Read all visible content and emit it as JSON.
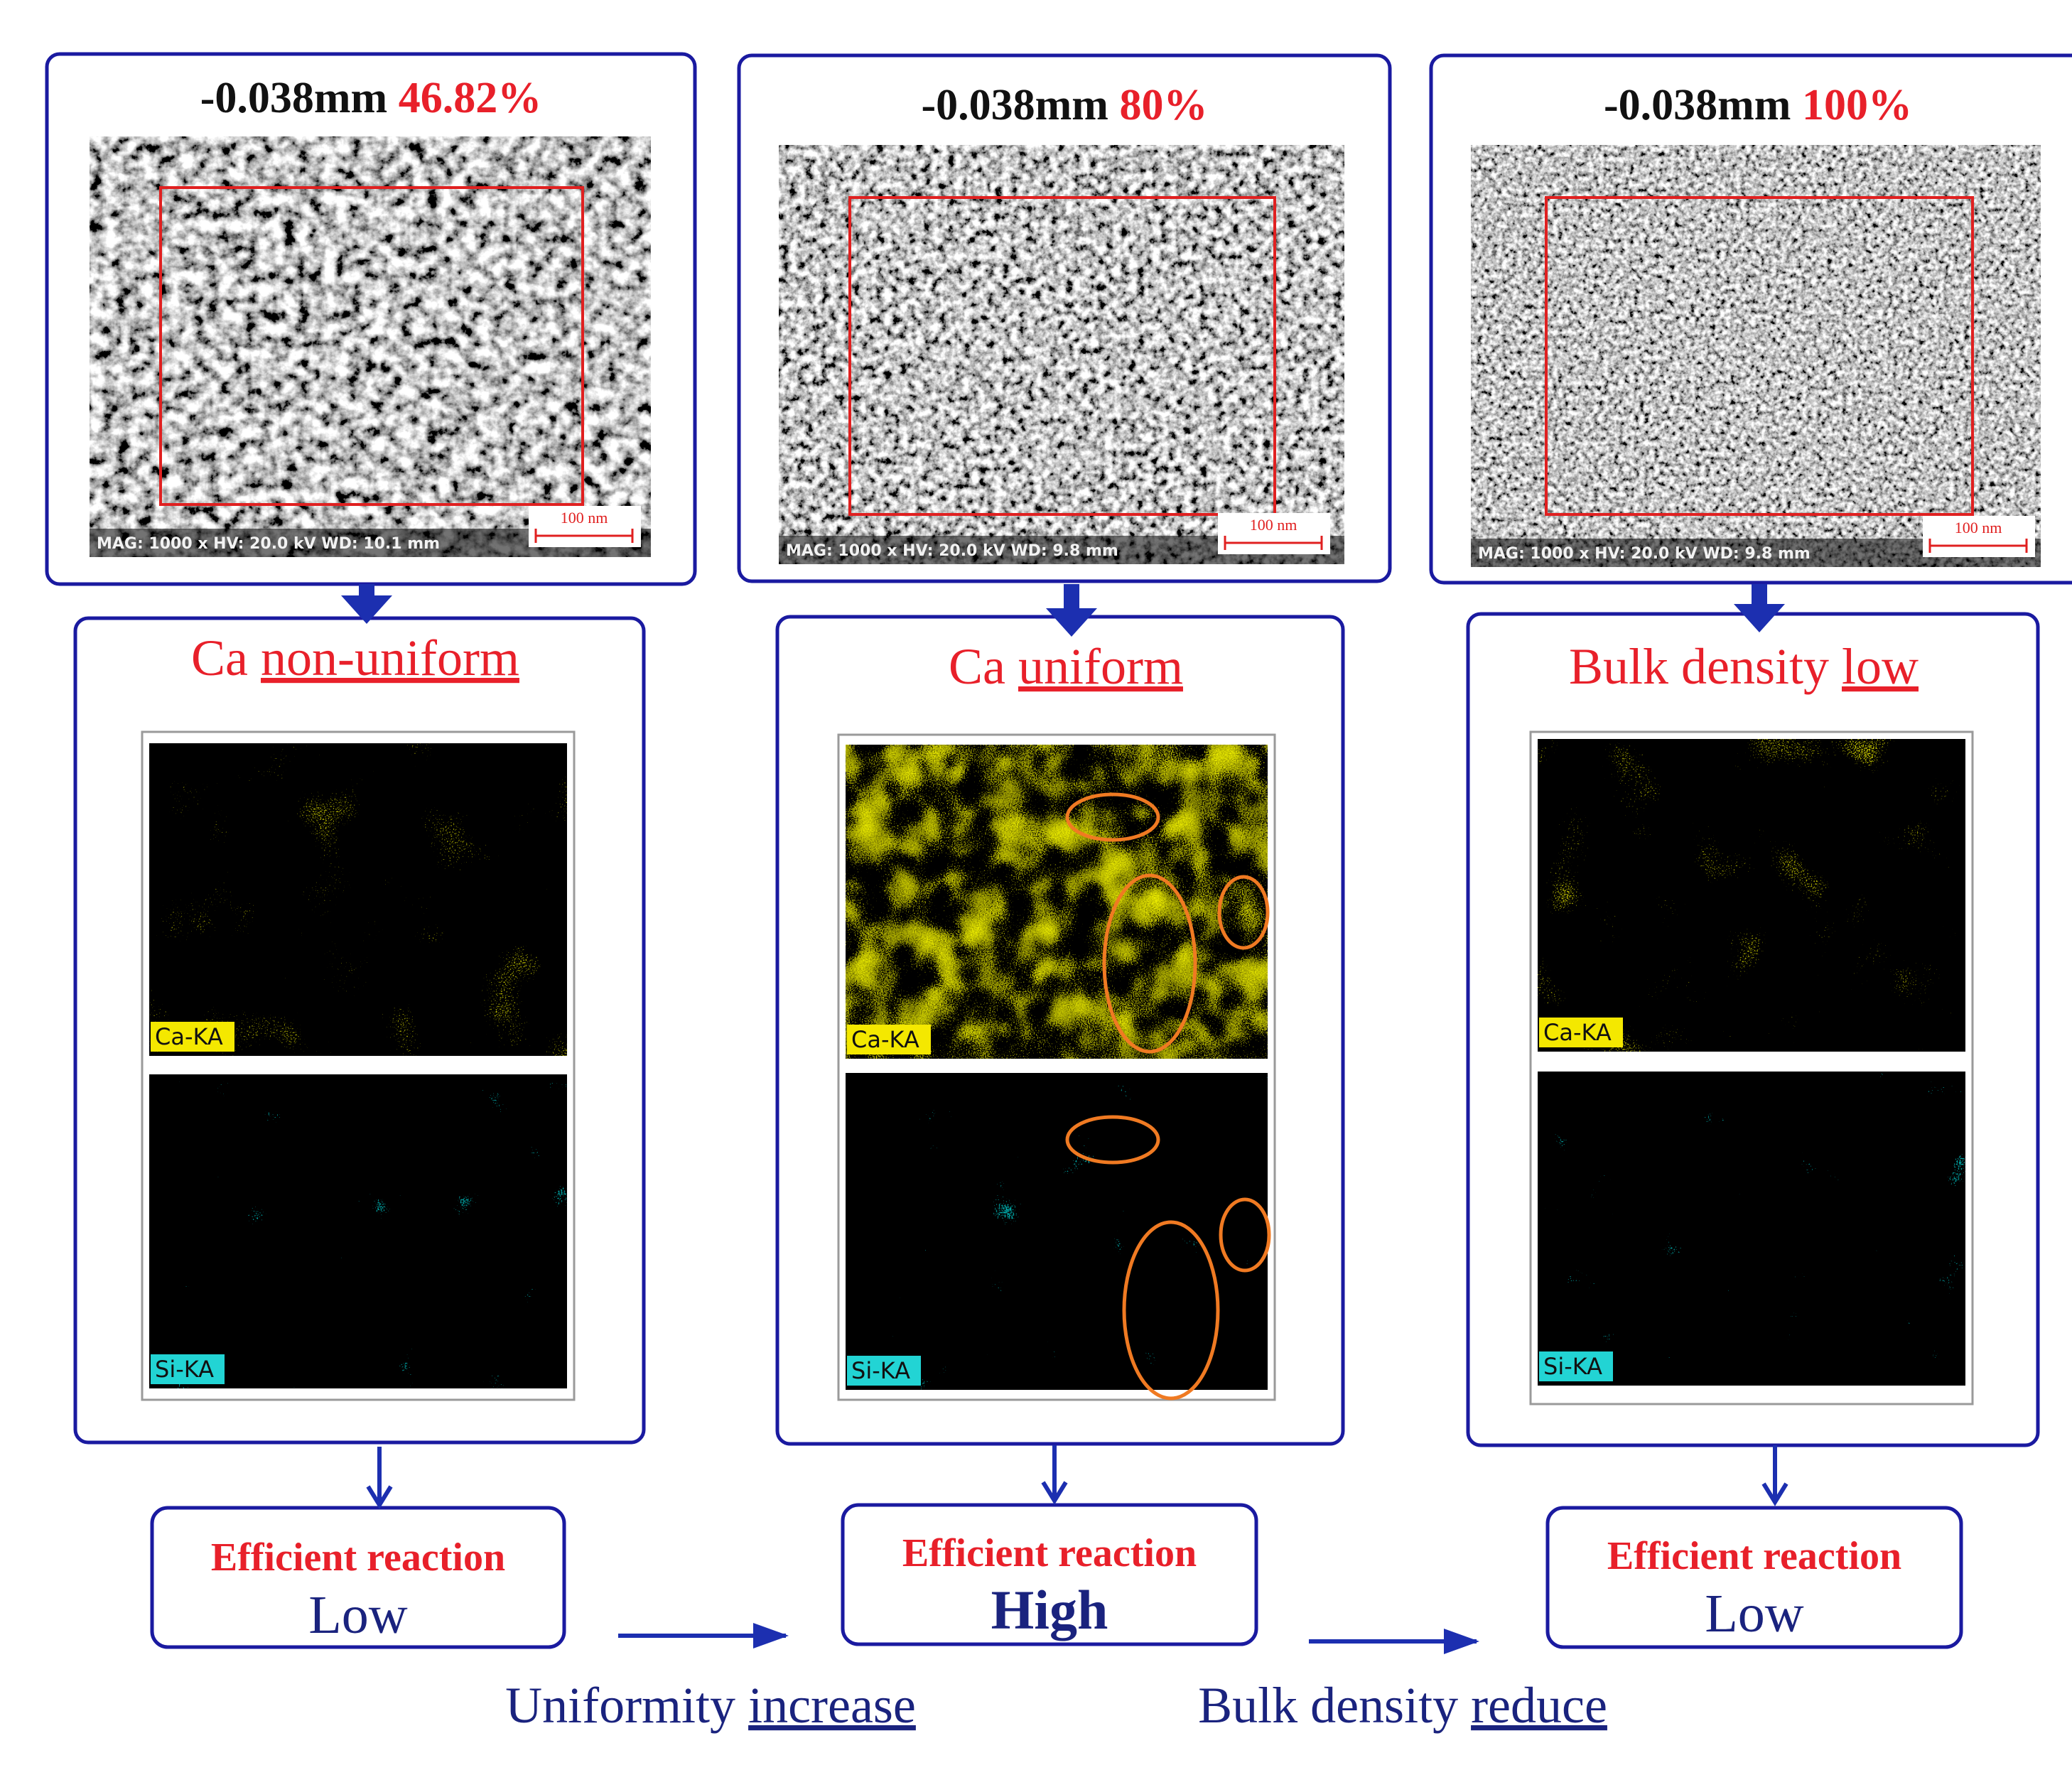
{
  "panels": [
    {
      "size_label": "-0.038mm",
      "percent": "46.82%",
      "sem_scalebar": "100 nm",
      "sem_footer": "MAG: 1000 x  HV: 20.0 kV  WD: 10.1 mm",
      "finding_element": "Ca",
      "finding_quality": "non-uniform",
      "map_top_label": "Ca-KA",
      "map_bottom_label": "Si-KA",
      "result_title": "Efficient reaction",
      "result_level": "Low"
    },
    {
      "size_label": "-0.038mm",
      "percent": "80%",
      "sem_scalebar": "100 nm",
      "sem_footer": "MAG: 1000 x  HV: 20.0 kV  WD: 9.8 mm",
      "finding_element": "Ca",
      "finding_quality": "uniform",
      "map_top_label": "Ca-KA",
      "map_bottom_label": "Si-KA",
      "result_title": "Efficient reaction",
      "result_level": "High"
    },
    {
      "size_label": "-0.038mm",
      "percent": "100%",
      "sem_scalebar": "100 nm",
      "sem_footer": "MAG: 1000 x  HV: 20.0 kV  WD: 9.8 mm",
      "finding_element": "Bulk density",
      "finding_quality": "low",
      "map_top_label": "Ca-KA",
      "map_bottom_label": "Si-KA",
      "result_title": "Efficient reaction",
      "result_level": "Low"
    }
  ],
  "trends": [
    {
      "prefix": "Uniformity",
      "change": "increase"
    },
    {
      "prefix": "Bulk density",
      "change": "reduce"
    }
  ],
  "colors": {
    "frame_blue": "#1a1aa0",
    "arrow_blue": "#1c2fb0",
    "text_red": "#e8202a",
    "text_navy": "#1a237e",
    "roi_red": "#e02020",
    "ca_yellow": "#d7d400",
    "si_cyan": "#35d6d6",
    "ellipse_orange": "#f07a22",
    "label_ca_bg": "#f4e800",
    "label_si_bg": "#22d4d4"
  }
}
